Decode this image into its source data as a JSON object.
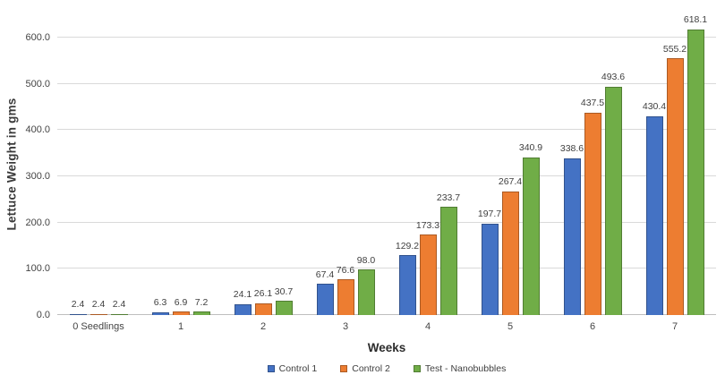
{
  "chart_data": {
    "type": "bar",
    "title": "",
    "xlabel": "Weeks",
    "ylabel": "Lettuce Weight in gms",
    "categories": [
      "0 Seedlings",
      "1",
      "2",
      "3",
      "4",
      "5",
      "6",
      "7"
    ],
    "series": [
      {
        "name": "Control 1",
        "color": "#4472C4",
        "values": [
          2.4,
          6.3,
          24.1,
          67.4,
          129.2,
          197.7,
          338.6,
          430.4
        ]
      },
      {
        "name": "Control 2",
        "color": "#ED7D31",
        "values": [
          2.4,
          6.9,
          26.1,
          76.6,
          173.3,
          267.4,
          437.5,
          555.2
        ]
      },
      {
        "name": "Test - Nanobubbles",
        "color": "#70AD47",
        "values": [
          2.4,
          7.2,
          30.7,
          98.0,
          233.7,
          340.9,
          493.6,
          618.1
        ]
      }
    ],
    "y_ticks": [
      0,
      100,
      200,
      300,
      400,
      500,
      600
    ],
    "y_tick_labels": [
      "0.0",
      "100.0",
      "200.0",
      "300.0",
      "400.0",
      "500.0",
      "600.0"
    ],
    "ylim": [
      0,
      650
    ],
    "grid": true,
    "legend_position": "bottom",
    "data_labels": true,
    "colors": {
      "gridline": "#d9d9d9",
      "axis_line": "#bfbfbf",
      "label_text": "#3f3f3f"
    }
  }
}
